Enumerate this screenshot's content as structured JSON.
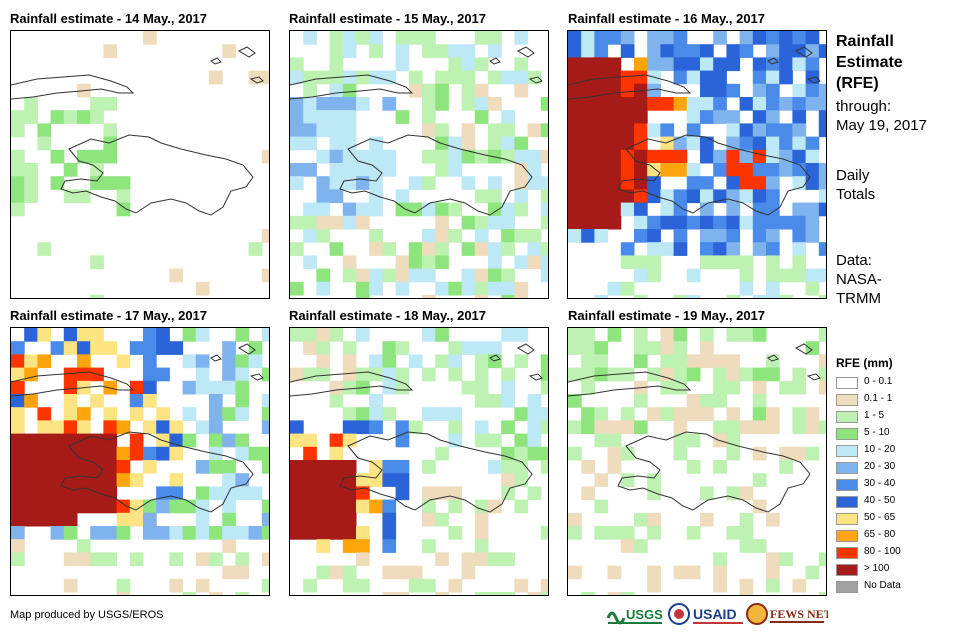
{
  "panels": [
    {
      "title": "Rainfall estimate - 14 May., 2017",
      "scenario": 1
    },
    {
      "title": "Rainfall estimate - 15 May., 2017",
      "scenario": 2
    },
    {
      "title": "Rainfall estimate - 16 May., 2017",
      "scenario": 3
    },
    {
      "title": "Rainfall estimate - 17 May., 2017",
      "scenario": 4
    },
    {
      "title": "Rainfall estimate - 18 May., 2017",
      "scenario": 5
    },
    {
      "title": "Rainfall estimate - 19 May., 2017",
      "scenario": 6
    }
  ],
  "side": {
    "title_line1": "Rainfall",
    "title_line2": "Estimate",
    "title_line3": "(RFE)",
    "through": "through:",
    "date": "May 19, 2017",
    "daily1": "Daily",
    "daily2": "Totals",
    "data1": "Data:",
    "data2": "NASA-",
    "data3": "TRMM"
  },
  "legend": {
    "title": "RFE (mm)",
    "items": [
      {
        "label": "0 - 0.1",
        "color": "#ffffff"
      },
      {
        "label": "0.1 - 1",
        "color": "#eedcbc"
      },
      {
        "label": "1 - 5",
        "color": "#bdf2b2"
      },
      {
        "label": "5 - 10",
        "color": "#8ee57e"
      },
      {
        "label": "10 - 20",
        "color": "#bde8f6"
      },
      {
        "label": "20 - 30",
        "color": "#7fb3ee"
      },
      {
        "label": "30 - 40",
        "color": "#4a8ae8"
      },
      {
        "label": "40 - 50",
        "color": "#2a64d8"
      },
      {
        "label": "50 - 65",
        "color": "#fde483"
      },
      {
        "label": "65 - 80",
        "color": "#fea50e"
      },
      {
        "label": "80 - 100",
        "color": "#fc3400"
      },
      {
        "label": "> 100",
        "color": "#a61a18"
      },
      {
        "label": "No Data",
        "color": "#a0a0a0"
      }
    ]
  },
  "footer": "Map produced by USGS/EROS",
  "logos": {
    "usgs": "USGS",
    "usaid": "USAID",
    "fewsnet": "FEWS NET"
  }
}
